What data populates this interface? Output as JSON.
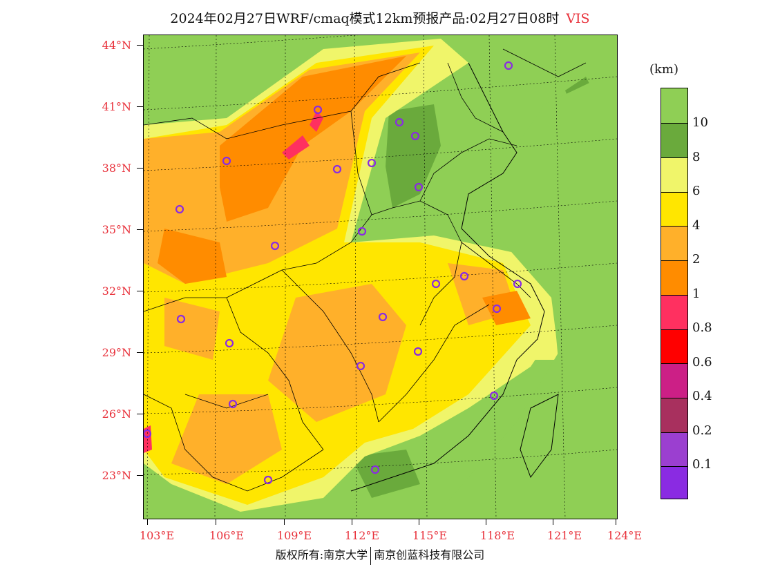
{
  "title": {
    "main": "2024年02月27日WRF/cmaq模式12km预报产品:02月27日08时",
    "variable": "VIS"
  },
  "map": {
    "lat_labels": [
      "44°N",
      "41°N",
      "38°N",
      "35°N",
      "32°N",
      "29°N",
      "26°N",
      "23°N"
    ],
    "lon_labels": [
      "103°E",
      "106°E",
      "109°E",
      "112°E",
      "115°E",
      "118°E",
      "121°E",
      "124°E"
    ],
    "fill_colors": {
      "gt10": "#8fcf55",
      "8_10": "#6aaa3c",
      "6_8": "#f0f56a",
      "4_6": "#ffe600",
      "2_4": "#ffb02a",
      "1_2": "#ff8c00",
      "0_8_1": "#ff3060",
      "city_marker": "#8a2be2"
    }
  },
  "legend": {
    "unit": "(km)",
    "labels": [
      "10",
      "8",
      "6",
      "4",
      "2",
      "1",
      "0.8",
      "0.6",
      "0.4",
      "0.2",
      "0.1"
    ],
    "colors": [
      "#8fcf55",
      "#6aaa3c",
      "#f0f56a",
      "#ffe600",
      "#ffb02a",
      "#ff8c00",
      "#ff3060",
      "#ff0000",
      "#cc1f86",
      "#a8305e",
      "#9b3fd0",
      "#8a2be2"
    ]
  },
  "footer": {
    "left": "版权所有:南京大学",
    "right": "南京创蓝科技有限公司"
  }
}
